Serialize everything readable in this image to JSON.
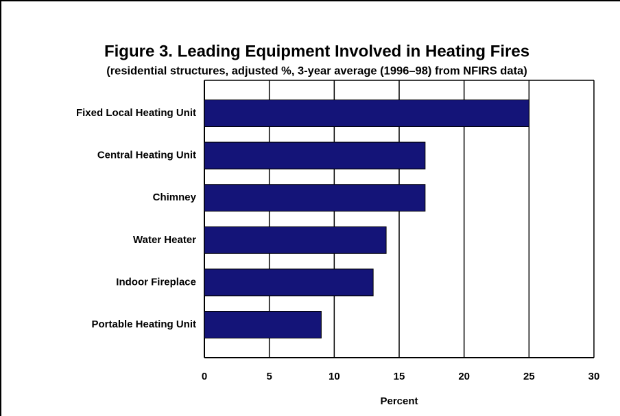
{
  "chart_data": {
    "type": "bar",
    "orientation": "horizontal",
    "title": "Figure 3.  Leading Equipment Involved in Heating Fires",
    "subtitle": "(residential structures, adjusted %, 3-year average (1996–98) from NFIRS data)",
    "xlabel": "Percent",
    "categories": [
      "Fixed Local Heating Unit",
      "Central Heating Unit",
      "Chimney",
      "Water Heater",
      "Indoor Fireplace",
      "Portable Heating Unit"
    ],
    "values": [
      25,
      17,
      17,
      14,
      13,
      9
    ],
    "color": "#141478",
    "xlim": [
      0,
      30
    ],
    "xticks": [
      0,
      5,
      10,
      15,
      20,
      25,
      30
    ],
    "grid": true
  }
}
